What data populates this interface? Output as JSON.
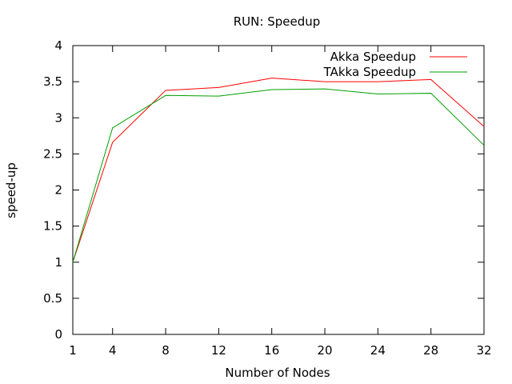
{
  "chart_data": {
    "type": "line",
    "title": "RUN: Speedup",
    "xlabel": "Number of Nodes",
    "ylabel": "speed-up",
    "x": [
      1,
      4,
      8,
      12,
      16,
      20,
      24,
      28,
      32
    ],
    "xlim": [
      1,
      32
    ],
    "ylim": [
      0,
      4
    ],
    "x_ticks": [
      "1",
      "4",
      "8",
      "12",
      "16",
      "20",
      "24",
      "28",
      "32"
    ],
    "y_ticks": [
      "0",
      "0.5",
      "1",
      "1.5",
      "2",
      "2.5",
      "3",
      "3.5",
      "4"
    ],
    "grid": false,
    "legend_position": "top-right",
    "series": [
      {
        "name": "Akka Speedup",
        "color": "#ff0000",
        "values": [
          1.0,
          2.66,
          3.38,
          3.42,
          3.55,
          3.5,
          3.5,
          3.53,
          2.88
        ]
      },
      {
        "name": "TAkka Speedup",
        "color": "#00a000",
        "values": [
          1.0,
          2.86,
          3.31,
          3.3,
          3.39,
          3.4,
          3.33,
          3.34,
          2.62
        ]
      }
    ]
  }
}
